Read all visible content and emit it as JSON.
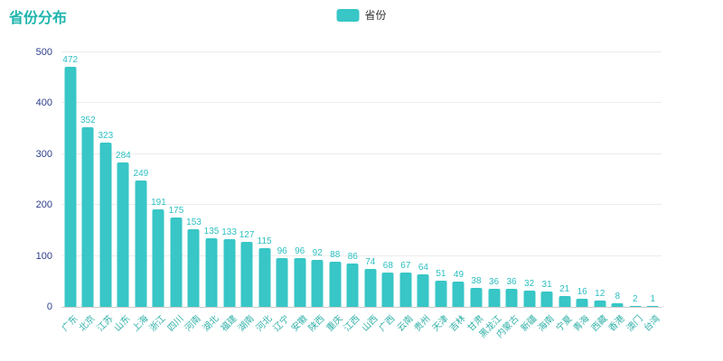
{
  "title": "省份分布",
  "legend": {
    "label": "省份",
    "swatch_color": "#38c6c6"
  },
  "colors": {
    "bar": "#38c6c6",
    "title": "#1fb5ad",
    "value_label": "#2cbfc1",
    "x_label": "#30b0a8",
    "y_label": "#2d3e8b",
    "gridline": "#ececec"
  },
  "chart_data": {
    "type": "bar",
    "title": "省份分布",
    "legend": [
      "省份"
    ],
    "legend_position": "top-center",
    "grid": true,
    "ylim": [
      0,
      500
    ],
    "yticks": [
      0,
      100,
      200,
      300,
      400,
      500
    ],
    "xlabel": "",
    "ylabel": "",
    "categories": [
      "广东",
      "北京",
      "江苏",
      "山东",
      "上海",
      "浙江",
      "四川",
      "河南",
      "湖北",
      "福建",
      "湖南",
      "河北",
      "辽宁",
      "安徽",
      "陕西",
      "重庆",
      "江西",
      "山西",
      "广西",
      "云南",
      "贵州",
      "天津",
      "吉林",
      "甘肃",
      "黑龙江",
      "内蒙古",
      "新疆",
      "海南",
      "宁夏",
      "青海",
      "西藏",
      "香港",
      "澳门",
      "台湾"
    ],
    "values": [
      472,
      352,
      323,
      284,
      249,
      191,
      175,
      153,
      135,
      133,
      127,
      115,
      96,
      96,
      92,
      88,
      86,
      74,
      68,
      67,
      64,
      51,
      49,
      38,
      36,
      36,
      32,
      31,
      21,
      16,
      12,
      8,
      2,
      1
    ]
  }
}
